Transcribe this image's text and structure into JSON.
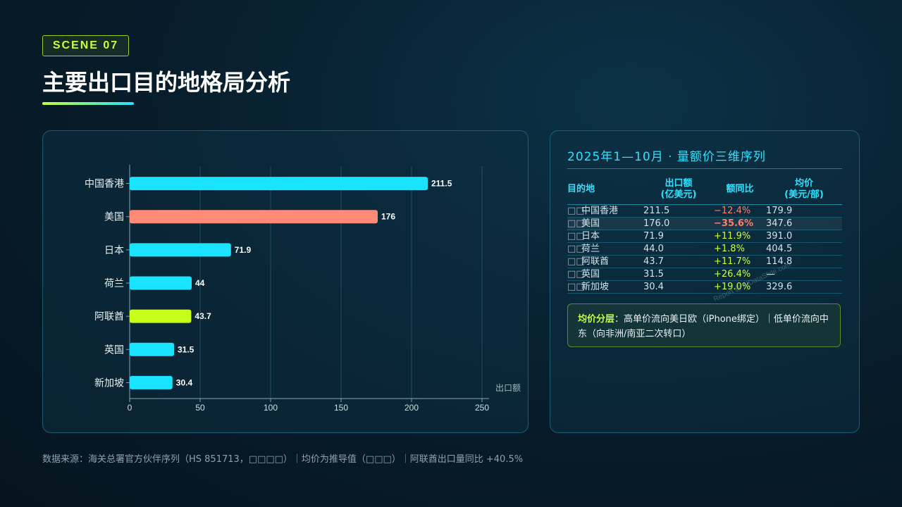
{
  "badge": "SCENE 07",
  "title": "主要出口目的地格局分析",
  "chart_data": {
    "type": "bar",
    "orientation": "horizontal",
    "categories": [
      "中国香港",
      "美国",
      "日本",
      "荷兰",
      "阿联酋",
      "英国",
      "新加坡"
    ],
    "values": [
      211.5,
      176,
      71.9,
      44,
      43.7,
      31.5,
      30.4
    ],
    "value_labels": [
      "211.5",
      "176",
      "71.9",
      "44",
      "43.7",
      "31.5",
      "30.4"
    ],
    "bar_colors": [
      "#19e3ff",
      "#ff8a78",
      "#19e3ff",
      "#19e3ff",
      "#c8ff1a",
      "#19e3ff",
      "#19e3ff"
    ],
    "xlabel": "出口额",
    "xlim": [
      0,
      250
    ],
    "xticks": [
      0,
      50,
      100,
      150,
      200,
      250
    ],
    "grid": true
  },
  "table": {
    "heading": "2025年1—10月 · 量额价三维序列",
    "columns": [
      "目的地",
      "出口额\n(亿美元)",
      "额同比",
      "均价\n(美元/部)"
    ],
    "rows": [
      {
        "flag": "□□",
        "name": "中国香港",
        "amount": "211.5",
        "yoy": "−12.4%",
        "yoy_dir": "neg",
        "price": "179.9",
        "strong": false,
        "highlight": false
      },
      {
        "flag": "□□",
        "name": "美国",
        "amount": "176.0",
        "yoy": "−35.6%",
        "yoy_dir": "neg",
        "price": "347.6",
        "strong": true,
        "highlight": true
      },
      {
        "flag": "□□",
        "name": "日本",
        "amount": "71.9",
        "yoy": "+11.9%",
        "yoy_dir": "pos",
        "price": "391.0",
        "strong": false,
        "highlight": false
      },
      {
        "flag": "□□",
        "name": "荷兰",
        "amount": "44.0",
        "yoy": "+1.8%",
        "yoy_dir": "pos",
        "price": "404.5",
        "strong": false,
        "highlight": false
      },
      {
        "flag": "□□",
        "name": "阿联酋",
        "amount": "43.7",
        "yoy": "+11.7%",
        "yoy_dir": "pos",
        "price": "114.8",
        "strong": false,
        "highlight": false
      },
      {
        "flag": "□□",
        "name": "英国",
        "amount": "31.5",
        "yoy": "+26.4%",
        "yoy_dir": "pos",
        "price": "—",
        "strong": false,
        "highlight": false
      },
      {
        "flag": "□□",
        "name": "新加坡",
        "amount": "30.4",
        "yoy": "+19.0%",
        "yoy_dir": "pos",
        "price": "329.6",
        "strong": false,
        "highlight": false
      }
    ]
  },
  "note": {
    "key": "均价分层",
    "text": "：高单价流向美日欧（iPhone绑定）｜低单价流向中东（向非洲/南亚二次转口）"
  },
  "watermark": "Report @ AIDataSlide.com",
  "source": "数据来源：海关总署官方伙伴序列（HS 851713，□□□□）｜均价为推导值（□□□）｜阿联酋出口量同比 +40.5%"
}
